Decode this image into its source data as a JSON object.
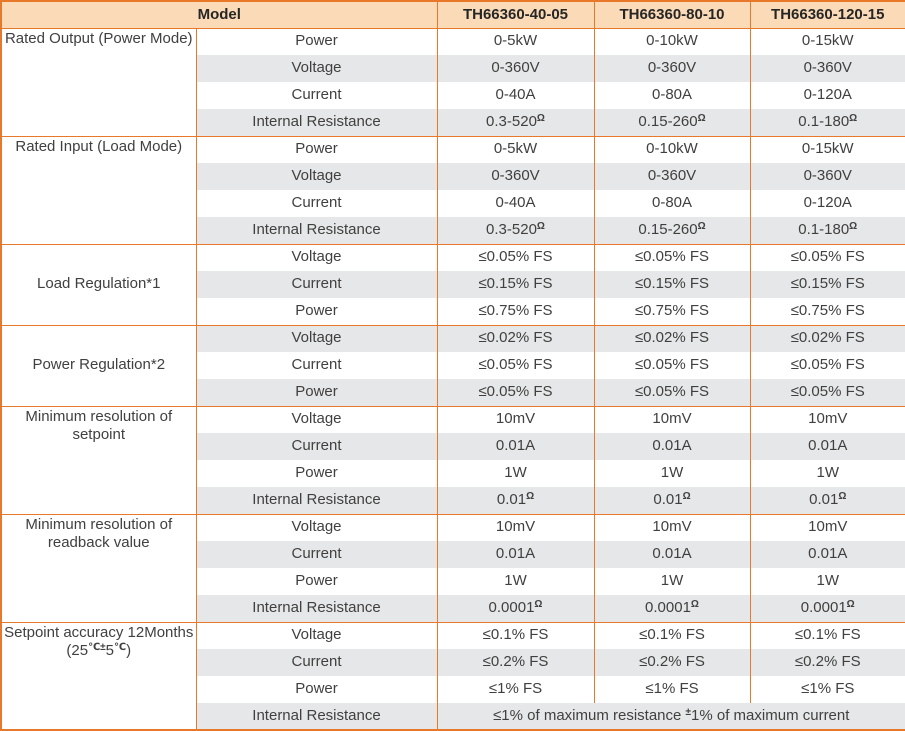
{
  "title": "TH66360 series specification table",
  "colors": {
    "accent_orange": "#E8792B",
    "header_bg": "#FBDBB7",
    "row_alt_bg": "#E6E7E8",
    "body_text": "#404040",
    "header_text": "#262626"
  },
  "header": {
    "model_label": "Model",
    "columns": [
      "TH66360-40-05",
      "TH66360-80-10",
      "TH66360-120-15"
    ]
  },
  "groups": [
    {
      "label": "Rated Output (Power Mode)",
      "valign": "top",
      "rows": [
        {
          "param": "Power",
          "values": [
            "0-5kW",
            "0-10kW",
            "0-15kW"
          ]
        },
        {
          "param": "Voltage",
          "values": [
            "0-360V",
            "0-360V",
            "0-360V"
          ]
        },
        {
          "param": "Current",
          "values": [
            "0-40A",
            "0-80A",
            "0-120A"
          ]
        },
        {
          "param": "Internal Resistance",
          "values": [
            "0.3-520^Ω^",
            "0.15-260^Ω^",
            "0.1-180^Ω^"
          ]
        }
      ]
    },
    {
      "label": "Rated Input (Load Mode)",
      "valign": "top",
      "rows": [
        {
          "param": "Power",
          "values": [
            "0-5kW",
            "0-10kW",
            "0-15kW"
          ]
        },
        {
          "param": "Voltage",
          "values": [
            "0-360V",
            "0-360V",
            "0-360V"
          ]
        },
        {
          "param": "Current",
          "values": [
            "0-40A",
            "0-80A",
            "0-120A"
          ]
        },
        {
          "param": "Internal Resistance",
          "values": [
            "0.3-520^Ω^",
            "0.15-260^Ω^",
            "0.1-180^Ω^"
          ]
        }
      ]
    },
    {
      "label": "Load Regulation*1",
      "valign": "middle",
      "rows": [
        {
          "param": "Voltage",
          "values": [
            "≤0.05% FS",
            "≤0.05% FS",
            "≤0.05% FS"
          ]
        },
        {
          "param": "Current",
          "values": [
            "≤0.15% FS",
            "≤0.15% FS",
            "≤0.15% FS"
          ]
        },
        {
          "param": "Power",
          "values": [
            "≤0.75% FS",
            "≤0.75% FS",
            "≤0.75% FS"
          ]
        }
      ]
    },
    {
      "label": "Power Regulation*2",
      "valign": "middle",
      "rows": [
        {
          "param": "Voltage",
          "values": [
            "≤0.02% FS",
            "≤0.02% FS",
            "≤0.02% FS"
          ]
        },
        {
          "param": "Current",
          "values": [
            "≤0.05% FS",
            "≤0.05% FS",
            "≤0.05% FS"
          ]
        },
        {
          "param": "Power",
          "values": [
            "≤0.05% FS",
            "≤0.05% FS",
            "≤0.05% FS"
          ]
        }
      ]
    },
    {
      "label": "Minimum resolution of\nsetpoint",
      "valign": "top",
      "rows": [
        {
          "param": "Voltage",
          "values": [
            "10mV",
            "10mV",
            "10mV"
          ]
        },
        {
          "param": "Current",
          "values": [
            "0.01A",
            "0.01A",
            "0.01A"
          ]
        },
        {
          "param": "Power",
          "values": [
            "1W",
            "1W",
            "1W"
          ]
        },
        {
          "param": "Internal Resistance",
          "values": [
            "0.01^Ω^",
            "0.01^Ω^",
            "0.01^Ω^"
          ]
        }
      ]
    },
    {
      "label": "Minimum resolution of\nreadback value",
      "valign": "top",
      "rows": [
        {
          "param": "Voltage",
          "values": [
            "10mV",
            "10mV",
            "10mV"
          ]
        },
        {
          "param": "Current",
          "values": [
            "0.01A",
            "0.01A",
            "0.01A"
          ]
        },
        {
          "param": "Power",
          "values": [
            "1W",
            "1W",
            "1W"
          ]
        },
        {
          "param": "Internal Resistance",
          "values": [
            "0.0001^Ω^",
            "0.0001^Ω^",
            "0.0001^Ω^"
          ]
        }
      ]
    },
    {
      "label": "Setpoint accuracy 12Months\n(25^℃±^5^℃^)",
      "valign": "top",
      "rows": [
        {
          "param": "Voltage",
          "values": [
            "≤0.1% FS",
            "≤0.1% FS",
            "≤0.1% FS"
          ]
        },
        {
          "param": "Current",
          "values": [
            "≤0.2% FS",
            "≤0.2% FS",
            "≤0.2% FS"
          ]
        },
        {
          "param": "Power",
          "values": [
            "≤1% FS",
            "≤1% FS",
            "≤1% FS"
          ]
        },
        {
          "param": "Internal Resistance",
          "span": "≤1% of maximum resistance ^±^1% of maximum current"
        }
      ]
    }
  ]
}
